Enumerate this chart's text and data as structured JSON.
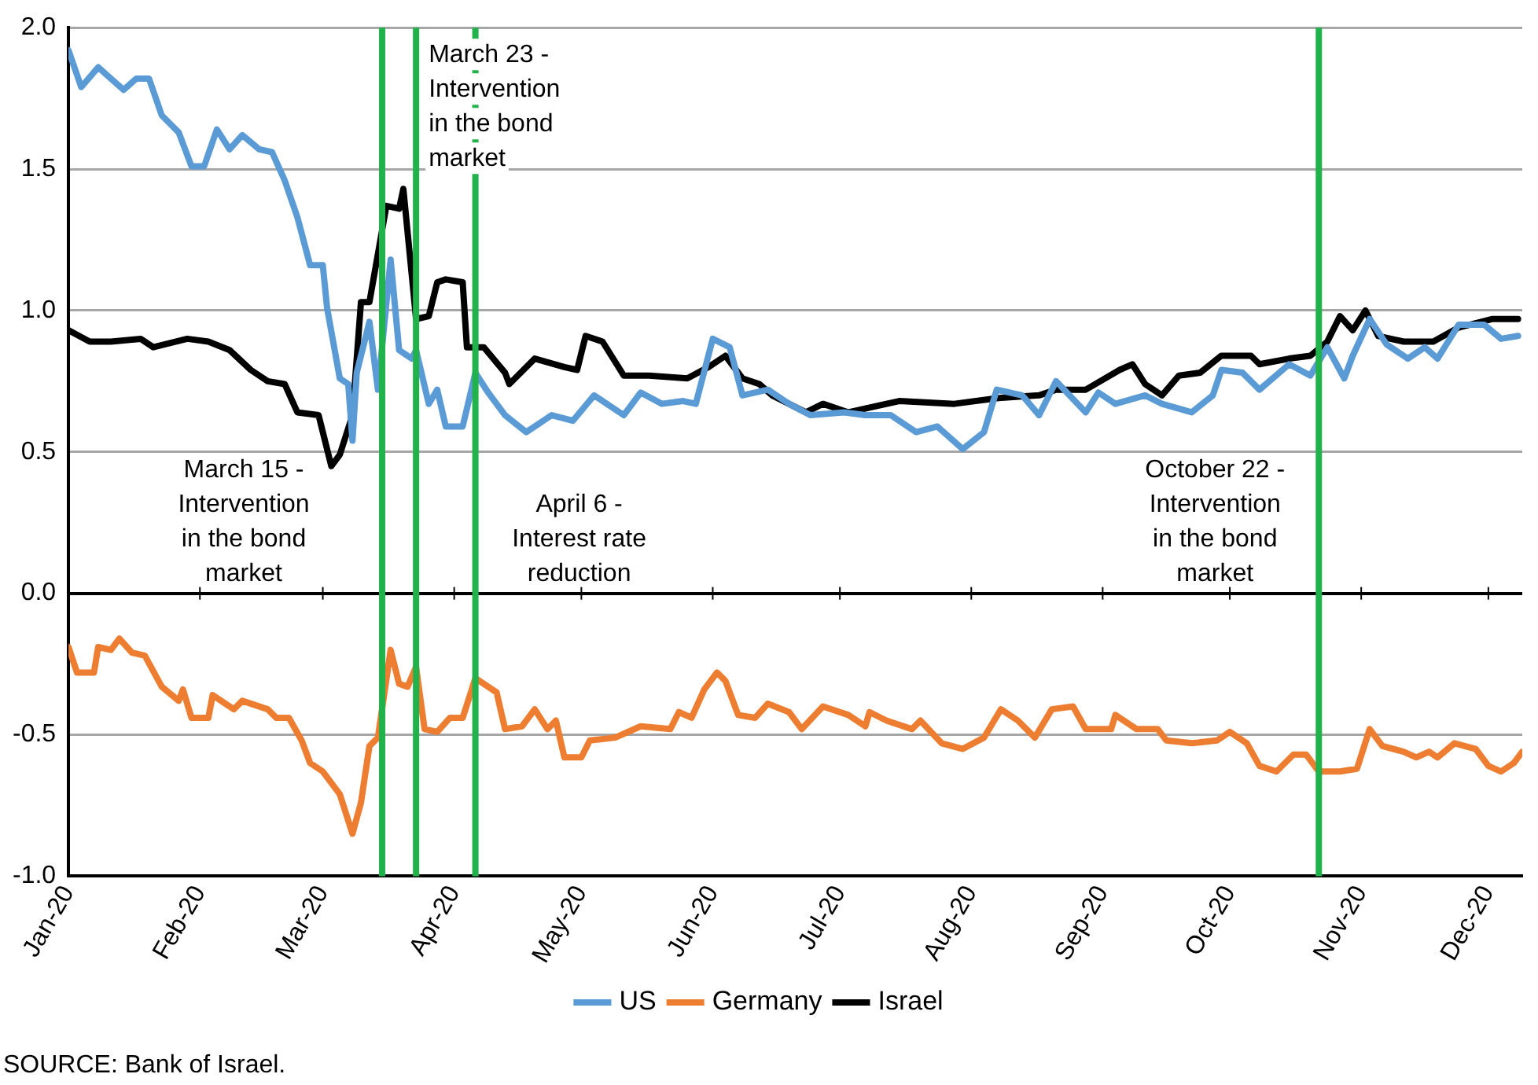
{
  "chart_data": {
    "type": "line",
    "xlim": [
      "2020-01-01",
      "2020-12-09"
    ],
    "xticks": [
      {
        "value": "2020-01-01",
        "label": "Jan-20"
      },
      {
        "value": "2020-02-01",
        "label": "Feb-20"
      },
      {
        "value": "2020-03-01",
        "label": "Mar-20"
      },
      {
        "value": "2020-04-01",
        "label": "Apr-20"
      },
      {
        "value": "2020-05-01",
        "label": "May-20"
      },
      {
        "value": "2020-06-01",
        "label": "Jun-20"
      },
      {
        "value": "2020-07-01",
        "label": "Jul-20"
      },
      {
        "value": "2020-08-01",
        "label": "Aug-20"
      },
      {
        "value": "2020-09-01",
        "label": "Sep-20"
      },
      {
        "value": "2020-10-01",
        "label": "Oct-20"
      },
      {
        "value": "2020-11-01",
        "label": "Nov-20"
      },
      {
        "value": "2020-12-01",
        "label": "Dec-20"
      }
    ],
    "ylim": [
      -1,
      2
    ],
    "yticks": [
      {
        "value": -1,
        "label": "-1.0"
      },
      {
        "value": -0.5,
        "label": "-0.5"
      },
      {
        "value": 0,
        "label": "0.0"
      },
      {
        "value": 0.5,
        "label": "0.5"
      },
      {
        "value": 1,
        "label": "1.0"
      },
      {
        "value": 1.5,
        "label": "1.5"
      },
      {
        "value": 2,
        "label": "2.0"
      }
    ],
    "grid": "y",
    "legend": "bottom",
    "marker": "none",
    "line_style": "solid",
    "series": [
      {
        "name": "US",
        "color": "#5b9bd5",
        "x": [
          "2020-01-01",
          "2020-01-04",
          "2020-01-08",
          "2020-01-11",
          "2020-01-14",
          "2020-01-17",
          "2020-01-20",
          "2020-01-23",
          "2020-01-27",
          "2020-01-30",
          "2020-02-02",
          "2020-02-05",
          "2020-02-08",
          "2020-02-11",
          "2020-02-15",
          "2020-02-18",
          "2020-02-21",
          "2020-02-24",
          "2020-02-27",
          "2020-03-01",
          "2020-03-02",
          "2020-03-05",
          "2020-03-07",
          "2020-03-08",
          "2020-03-09",
          "2020-03-12",
          "2020-03-14",
          "2020-03-17",
          "2020-03-19",
          "2020-03-22",
          "2020-03-23",
          "2020-03-26",
          "2020-03-28",
          "2020-03-30",
          "2020-04-03",
          "2020-04-06",
          "2020-04-09",
          "2020-04-13",
          "2020-04-18",
          "2020-04-24",
          "2020-04-29",
          "2020-05-04",
          "2020-05-11",
          "2020-05-15",
          "2020-05-20",
          "2020-05-25",
          "2020-05-28",
          "2020-06-01",
          "2020-06-05",
          "2020-06-08",
          "2020-06-14",
          "2020-06-19",
          "2020-06-24",
          "2020-07-02",
          "2020-07-07",
          "2020-07-13",
          "2020-07-19",
          "2020-07-24",
          "2020-07-30",
          "2020-08-04",
          "2020-08-07",
          "2020-08-13",
          "2020-08-17",
          "2020-08-21",
          "2020-08-28",
          "2020-08-31",
          "2020-09-04",
          "2020-09-11",
          "2020-09-15",
          "2020-09-22",
          "2020-09-27",
          "2020-09-29",
          "2020-10-04",
          "2020-10-08",
          "2020-10-15",
          "2020-10-20",
          "2020-10-24",
          "2020-10-28",
          "2020-10-30",
          "2020-11-03",
          "2020-11-07",
          "2020-11-12",
          "2020-11-16",
          "2020-11-19",
          "2020-11-24",
          "2020-11-30",
          "2020-12-04",
          "2020-12-08"
        ],
        "values": [
          1.92,
          1.79,
          1.86,
          1.82,
          1.78,
          1.82,
          1.82,
          1.69,
          1.63,
          1.51,
          1.51,
          1.64,
          1.57,
          1.62,
          1.57,
          1.56,
          1.46,
          1.33,
          1.16,
          1.16,
          1.01,
          0.76,
          0.74,
          0.54,
          0.78,
          0.96,
          0.72,
          1.18,
          0.86,
          0.83,
          0.86,
          0.67,
          0.72,
          0.59,
          0.59,
          0.78,
          0.71,
          0.63,
          0.57,
          0.63,
          0.61,
          0.7,
          0.63,
          0.71,
          0.67,
          0.68,
          0.67,
          0.9,
          0.87,
          0.7,
          0.72,
          0.67,
          0.63,
          0.64,
          0.63,
          0.63,
          0.57,
          0.59,
          0.51,
          0.57,
          0.72,
          0.7,
          0.63,
          0.75,
          0.64,
          0.71,
          0.67,
          0.7,
          0.67,
          0.64,
          0.7,
          0.79,
          0.78,
          0.72,
          0.81,
          0.77,
          0.87,
          0.76,
          0.84,
          0.97,
          0.88,
          0.83,
          0.87,
          0.83,
          0.95,
          0.95,
          0.9,
          0.91
        ]
      },
      {
        "name": "Germany",
        "color": "#ed7d31",
        "x": [
          "2020-01-01",
          "2020-01-03",
          "2020-01-07",
          "2020-01-08",
          "2020-01-11",
          "2020-01-13",
          "2020-01-16",
          "2020-01-19",
          "2020-01-23",
          "2020-01-27",
          "2020-01-28",
          "2020-01-30",
          "2020-02-03",
          "2020-02-04",
          "2020-02-09",
          "2020-02-11",
          "2020-02-17",
          "2020-02-19",
          "2020-02-22",
          "2020-02-25",
          "2020-02-27",
          "2020-03-01",
          "2020-03-05",
          "2020-03-08",
          "2020-03-10",
          "2020-03-12",
          "2020-03-14",
          "2020-03-17",
          "2020-03-19",
          "2020-03-21",
          "2020-03-23",
          "2020-03-25",
          "2020-03-28",
          "2020-03-31",
          "2020-04-03",
          "2020-04-06",
          "2020-04-11",
          "2020-04-13",
          "2020-04-17",
          "2020-04-20",
          "2020-04-23",
          "2020-04-25",
          "2020-04-27",
          "2020-05-01",
          "2020-05-03",
          "2020-05-09",
          "2020-05-15",
          "2020-05-22",
          "2020-05-24",
          "2020-05-27",
          "2020-05-30",
          "2020-06-02",
          "2020-06-04",
          "2020-06-07",
          "2020-06-11",
          "2020-06-14",
          "2020-06-19",
          "2020-06-22",
          "2020-06-27",
          "2020-07-03",
          "2020-07-07",
          "2020-07-08",
          "2020-07-12",
          "2020-07-18",
          "2020-07-20",
          "2020-07-25",
          "2020-07-30",
          "2020-08-04",
          "2020-08-08",
          "2020-08-12",
          "2020-08-16",
          "2020-08-20",
          "2020-08-25",
          "2020-08-28",
          "2020-09-03",
          "2020-09-04",
          "2020-09-09",
          "2020-09-14",
          "2020-09-16",
          "2020-09-22",
          "2020-09-28",
          "2020-10-01",
          "2020-10-05",
          "2020-10-08",
          "2020-10-12",
          "2020-10-16",
          "2020-10-19",
          "2020-10-22",
          "2020-10-27",
          "2020-10-31",
          "2020-11-03",
          "2020-11-06",
          "2020-11-11",
          "2020-11-14",
          "2020-11-17",
          "2020-11-19",
          "2020-11-23",
          "2020-11-28",
          "2020-12-01",
          "2020-12-04",
          "2020-12-07",
          "2020-12-09"
        ],
        "values": [
          -0.19,
          -0.28,
          -0.28,
          -0.19,
          -0.2,
          -0.16,
          -0.21,
          -0.22,
          -0.33,
          -0.38,
          -0.34,
          -0.44,
          -0.44,
          -0.36,
          -0.41,
          -0.38,
          -0.41,
          -0.44,
          -0.44,
          -0.52,
          -0.6,
          -0.63,
          -0.71,
          -0.85,
          -0.74,
          -0.54,
          -0.51,
          -0.2,
          -0.32,
          -0.33,
          -0.26,
          -0.48,
          -0.49,
          -0.44,
          -0.44,
          -0.3,
          -0.35,
          -0.48,
          -0.47,
          -0.41,
          -0.48,
          -0.45,
          -0.58,
          -0.58,
          -0.52,
          -0.51,
          -0.47,
          -0.48,
          -0.42,
          -0.44,
          -0.34,
          -0.28,
          -0.31,
          -0.43,
          -0.44,
          -0.39,
          -0.42,
          -0.48,
          -0.4,
          -0.43,
          -0.47,
          -0.42,
          -0.45,
          -0.48,
          -0.45,
          -0.53,
          -0.55,
          -0.51,
          -0.41,
          -0.45,
          -0.51,
          -0.41,
          -0.4,
          -0.48,
          -0.48,
          -0.43,
          -0.48,
          -0.48,
          -0.52,
          -0.53,
          -0.52,
          -0.49,
          -0.53,
          -0.61,
          -0.63,
          -0.57,
          -0.57,
          -0.63,
          -0.63,
          -0.62,
          -0.48,
          -0.54,
          -0.56,
          -0.58,
          -0.56,
          -0.58,
          -0.53,
          -0.55,
          -0.61,
          -0.63,
          -0.6,
          -0.56
        ]
      },
      {
        "name": "Israel",
        "color": "#000000",
        "x": [
          "2020-01-01",
          "2020-01-06",
          "2020-01-11",
          "2020-01-18",
          "2020-01-21",
          "2020-01-29",
          "2020-02-03",
          "2020-02-08",
          "2020-02-13",
          "2020-02-17",
          "2020-02-21",
          "2020-02-24",
          "2020-02-29",
          "2020-03-03",
          "2020-03-05",
          "2020-03-08",
          "2020-03-10",
          "2020-03-12",
          "2020-03-16",
          "2020-03-19",
          "2020-03-20",
          "2020-03-23",
          "2020-03-26",
          "2020-03-28",
          "2020-03-30",
          "2020-04-03",
          "2020-04-04",
          "2020-04-08",
          "2020-04-13",
          "2020-04-14",
          "2020-04-20",
          "2020-04-27",
          "2020-04-30",
          "2020-05-02",
          "2020-05-06",
          "2020-05-11",
          "2020-05-17",
          "2020-05-26",
          "2020-05-31",
          "2020-06-04",
          "2020-06-08",
          "2020-06-12",
          "2020-06-15",
          "2020-06-23",
          "2020-06-27",
          "2020-07-03",
          "2020-07-15",
          "2020-07-28",
          "2020-08-07",
          "2020-08-17",
          "2020-08-21",
          "2020-08-28",
          "2020-09-05",
          "2020-09-08",
          "2020-09-11",
          "2020-09-15",
          "2020-09-19",
          "2020-09-24",
          "2020-09-29",
          "2020-10-06",
          "2020-10-08",
          "2020-10-15",
          "2020-10-20",
          "2020-10-24",
          "2020-10-27",
          "2020-10-30",
          "2020-11-02",
          "2020-11-05",
          "2020-11-11",
          "2020-11-18",
          "2020-11-24",
          "2020-12-02",
          "2020-12-08"
        ],
        "values": [
          0.93,
          0.89,
          0.89,
          0.9,
          0.87,
          0.9,
          0.89,
          0.86,
          0.79,
          0.75,
          0.74,
          0.64,
          0.63,
          0.45,
          0.49,
          0.63,
          1.03,
          1.03,
          1.37,
          1.36,
          1.43,
          0.97,
          0.98,
          1.1,
          1.11,
          1.1,
          0.87,
          0.87,
          0.78,
          0.74,
          0.83,
          0.8,
          0.79,
          0.91,
          0.89,
          0.77,
          0.77,
          0.76,
          0.8,
          0.84,
          0.76,
          0.74,
          0.7,
          0.64,
          0.67,
          0.64,
          0.68,
          0.67,
          0.69,
          0.7,
          0.72,
          0.72,
          0.79,
          0.81,
          0.74,
          0.7,
          0.77,
          0.78,
          0.84,
          0.84,
          0.81,
          0.83,
          0.84,
          0.89,
          0.98,
          0.93,
          1.0,
          0.91,
          0.89,
          0.89,
          0.94,
          0.97,
          0.97
        ]
      }
    ],
    "ref_lines": [
      {
        "axis": "x",
        "value": "2020-03-15",
        "label": "March 15 - Intervention in the bond market",
        "color": "#22b24c"
      },
      {
        "axis": "x",
        "value": "2020-03-23",
        "label": "March 23 - Intervention in the bond market",
        "color": "#22b24c"
      },
      {
        "axis": "x",
        "value": "2020-04-06",
        "label": "April 6 - Interest rate reduction",
        "color": "#22b24c"
      },
      {
        "axis": "x",
        "value": "2020-10-22",
        "label": "October 22 - Intervention in the bond market",
        "color": "#22b24c"
      }
    ],
    "annotations": [
      "SOURCE: Bank of Israel."
    ]
  }
}
